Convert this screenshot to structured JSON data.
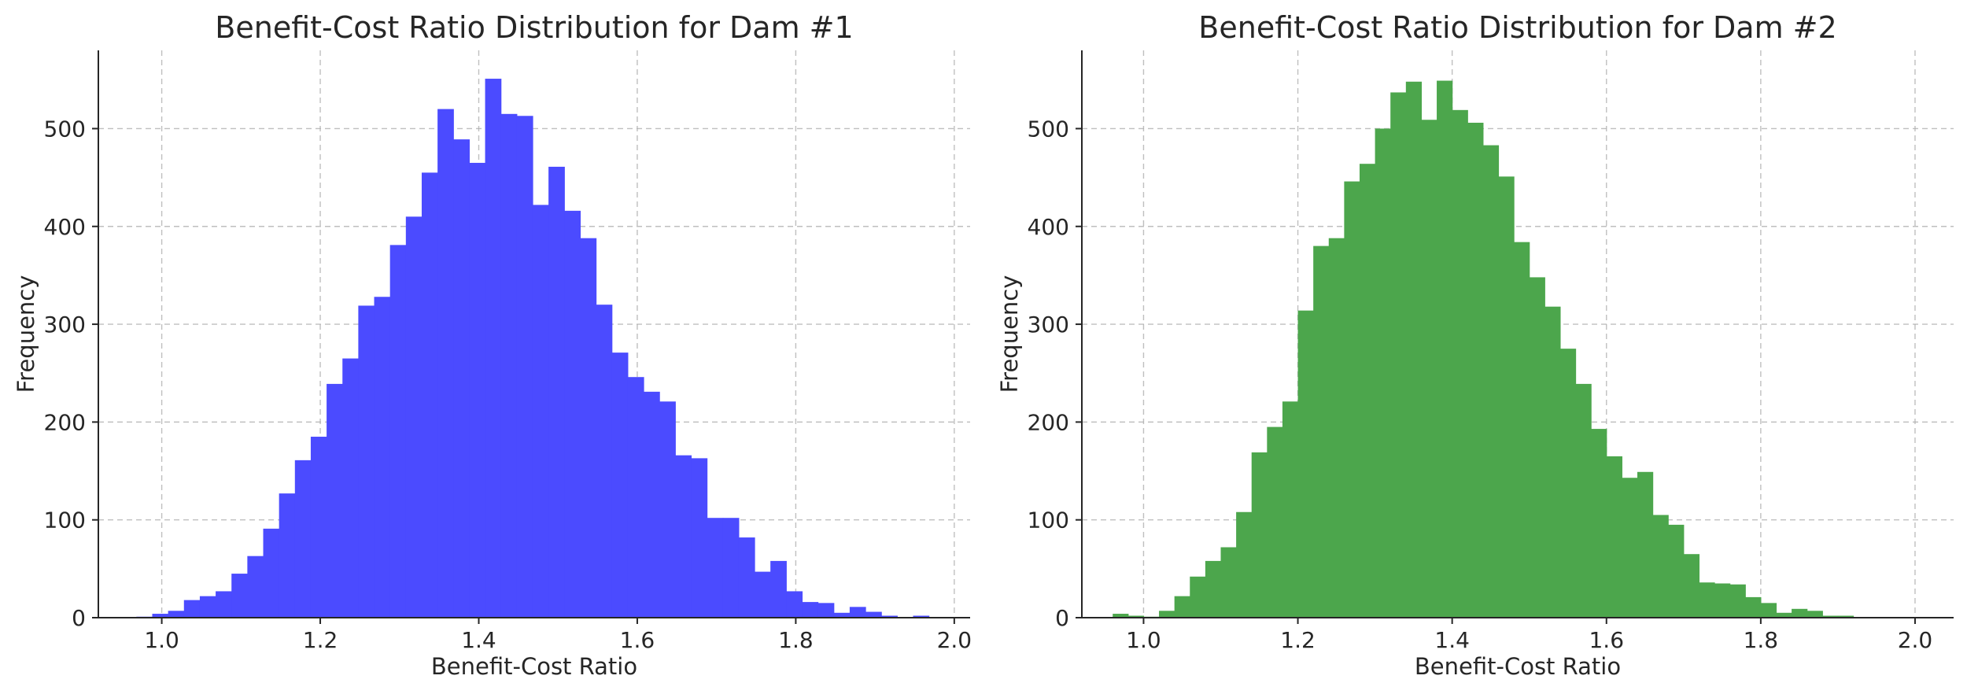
{
  "chart_data": [
    {
      "type": "bar",
      "histogram": true,
      "title": "Benefit-Cost Ratio Distribution for Dam #1",
      "xlabel": "Benefit-Cost Ratio",
      "ylabel": "Frequency",
      "xlim": [
        0.92,
        2.02
      ],
      "ylim": [
        0,
        580
      ],
      "xticks": [
        1.0,
        1.2,
        1.4,
        1.6,
        1.8,
        2.0
      ],
      "xtick_labels": [
        "1.0",
        "1.2",
        "1.4",
        "1.6",
        "1.8",
        "2.0"
      ],
      "yticks": [
        0,
        100,
        200,
        300,
        400,
        500
      ],
      "ytick_labels": [
        "0",
        "100",
        "200",
        "300",
        "400",
        "500"
      ],
      "grid": true,
      "color": "#4b4bff",
      "bin_start": 0.968,
      "bin_width": 0.02,
      "values": [
        1,
        4,
        7,
        18,
        22,
        27,
        45,
        63,
        91,
        127,
        161,
        185,
        239,
        265,
        319,
        328,
        381,
        410,
        455,
        520,
        489,
        465,
        551,
        515,
        513,
        422,
        461,
        416,
        388,
        320,
        271,
        246,
        231,
        221,
        166,
        163,
        102,
        102,
        82,
        47,
        58,
        27,
        16,
        15,
        5,
        11,
        6,
        2,
        0,
        2,
        0
      ]
    },
    {
      "type": "bar",
      "histogram": true,
      "title": "Benefit-Cost Ratio Distribution for Dam #2",
      "xlabel": "Benefit-Cost Ratio",
      "ylabel": "Frequency",
      "xlim": [
        0.92,
        2.05
      ],
      "ylim": [
        0,
        580
      ],
      "xticks": [
        1.0,
        1.2,
        1.4,
        1.6,
        1.8,
        2.0
      ],
      "xtick_labels": [
        "1.0",
        "1.2",
        "1.4",
        "1.6",
        "1.8",
        "2.0"
      ],
      "yticks": [
        0,
        100,
        200,
        300,
        400,
        500
      ],
      "ytick_labels": [
        "0",
        "100",
        "200",
        "300",
        "400",
        "500"
      ],
      "grid": true,
      "color": "#4ca64c",
      "bin_start": 0.96,
      "bin_width": 0.02,
      "values": [
        4,
        2,
        1,
        7,
        22,
        42,
        58,
        72,
        108,
        169,
        195,
        221,
        314,
        380,
        388,
        446,
        464,
        500,
        537,
        548,
        509,
        549,
        519,
        506,
        483,
        451,
        384,
        348,
        318,
        275,
        239,
        193,
        165,
        143,
        149,
        105,
        95,
        65,
        36,
        35,
        34,
        21,
        15,
        5,
        9,
        7,
        2,
        2,
        0
      ]
    }
  ]
}
